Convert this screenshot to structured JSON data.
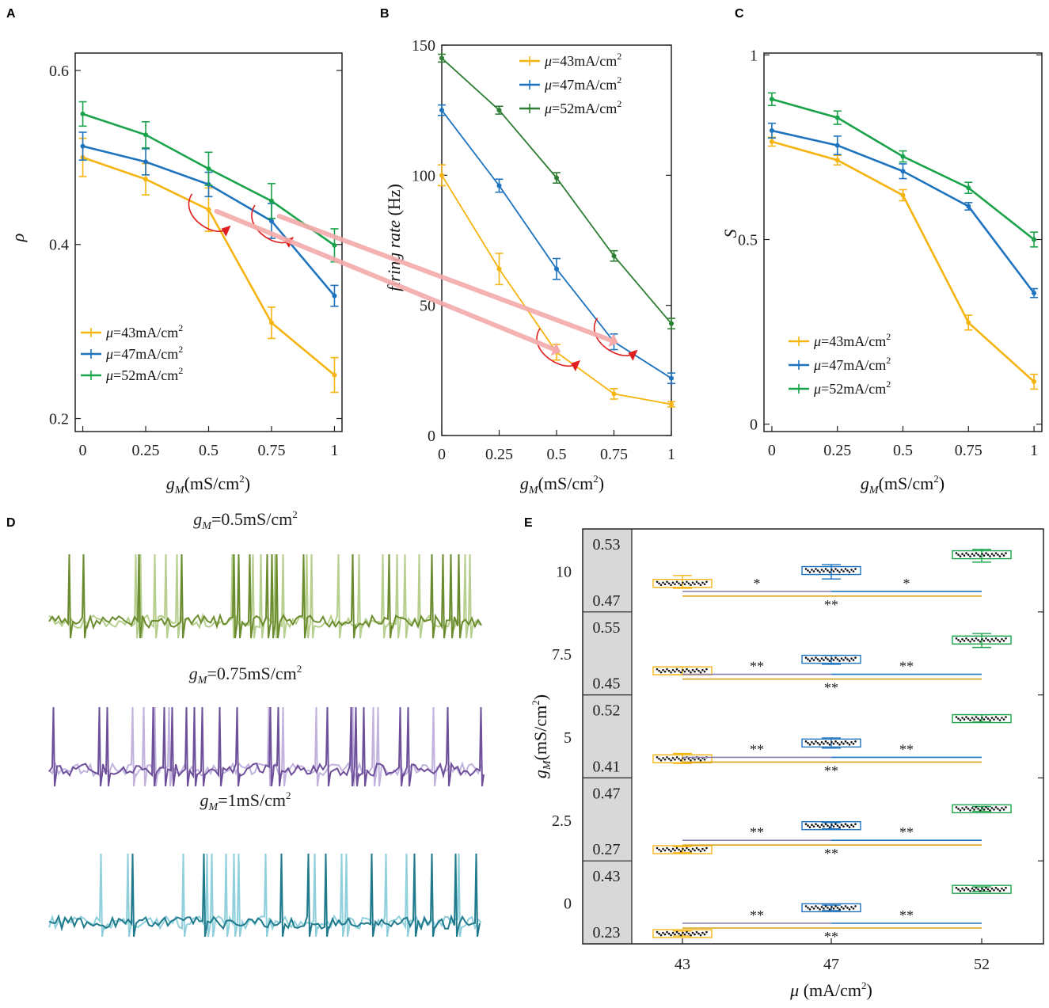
{
  "panel_labels": {
    "a": "A",
    "b": "B",
    "c": "C",
    "d": "D",
    "e": "E"
  },
  "colors": {
    "y": "#f5b410",
    "b": "#1e73be",
    "g": "#1aa34a",
    "gd": "#2e7d32",
    "arrow": "#e02020",
    "conn": "#f4aaaa"
  },
  "chart_data": [
    {
      "id": "A",
      "type": "line",
      "title": "",
      "xlabel": "gM(mS/cm2)",
      "ylabel": "ρ",
      "x": [
        0,
        0.25,
        0.5,
        0.75,
        1
      ],
      "xticks": [
        "0",
        "0.25",
        "0.5",
        "0.75",
        "1"
      ],
      "yticks": [
        "0.2",
        "0.4",
        "0.6"
      ],
      "ytick_values": [
        0.2,
        0.4,
        0.6
      ],
      "ylim": [
        0.185,
        0.62
      ],
      "xlim": [
        -0.03,
        1.03
      ],
      "legend": "bottom-left",
      "series": [
        {
          "name": "μ=43mA/cm2",
          "color": "y",
          "values": [
            0.5,
            0.475,
            0.44,
            0.31,
            0.25
          ],
          "err": [
            0.022,
            0.018,
            0.025,
            0.018,
            0.02
          ]
        },
        {
          "name": "μ=47mA/cm2",
          "color": "b",
          "values": [
            0.513,
            0.495,
            0.469,
            0.427,
            0.341
          ],
          "err": [
            0.016,
            0.015,
            0.014,
            0.02,
            0.012
          ]
        },
        {
          "name": "μ=52mA/cm2",
          "color": "g",
          "values": [
            0.55,
            0.526,
            0.487,
            0.45,
            0.399
          ],
          "err": [
            0.014,
            0.015,
            0.019,
            0.02,
            0.019
          ]
        }
      ]
    },
    {
      "id": "B",
      "type": "line",
      "title": "",
      "xlabel": "gM(mS/cm2)",
      "ylabel": "firing rate (Hz)",
      "x": [
        0,
        0.25,
        0.5,
        0.75,
        1
      ],
      "xticks": [
        "0",
        "0.25",
        "0.5",
        "0.75",
        "1"
      ],
      "yticks": [
        "0",
        "50",
        "100",
        "150"
      ],
      "ytick_values": [
        0,
        50,
        100,
        150
      ],
      "ylim": [
        0,
        150
      ],
      "xlim": [
        0,
        1
      ],
      "legend": "top-right",
      "series": [
        {
          "name": "μ=43mA/cm2",
          "color": "y",
          "values": [
            100,
            64,
            32,
            16,
            12
          ],
          "err": [
            4,
            6,
            3,
            2,
            1
          ]
        },
        {
          "name": "μ=47mA/cm2",
          "color": "b",
          "values": [
            125,
            96,
            64,
            36,
            22
          ],
          "err": [
            2,
            2.5,
            4,
            3,
            2
          ]
        },
        {
          "name": "μ=52mA/cm2",
          "color": "gd",
          "values": [
            145,
            125,
            99,
            69,
            43
          ],
          "err": [
            1.5,
            1.5,
            2,
            2,
            2
          ]
        }
      ]
    },
    {
      "id": "C",
      "type": "line",
      "title": "",
      "xlabel": "gM(mS/cm2)",
      "ylabel": "S",
      "x": [
        0,
        0.25,
        0.5,
        0.75,
        1
      ],
      "xticks": [
        "0",
        "0.25",
        "0.5",
        "0.75",
        "1"
      ],
      "yticks": [
        "0",
        "0.5",
        "1"
      ],
      "ytick_values": [
        0,
        0.5,
        1
      ],
      "ylim": [
        -0.02,
        1.005
      ],
      "xlim": [
        -0.03,
        1.03
      ],
      "legend": "bottom-left",
      "series": [
        {
          "name": "μ=43mA/cm2",
          "color": "y",
          "values": [
            0.765,
            0.715,
            0.62,
            0.275,
            0.115
          ],
          "err": [
            0.012,
            0.013,
            0.015,
            0.02,
            0.02
          ]
        },
        {
          "name": "μ=47mA/cm2",
          "color": "b",
          "values": [
            0.795,
            0.755,
            0.685,
            0.59,
            0.355
          ],
          "err": [
            0.02,
            0.025,
            0.02,
            0.01,
            0.012
          ]
        },
        {
          "name": "μ=52mA/cm2",
          "color": "g",
          "values": [
            0.88,
            0.83,
            0.725,
            0.64,
            0.5
          ],
          "err": [
            0.017,
            0.018,
            0.015,
            0.015,
            0.02
          ]
        }
      ]
    },
    {
      "id": "E",
      "type": "box",
      "title": "",
      "xlabel": "μ (mA/cm2)",
      "ylabel": "gM(mS/cm2)",
      "categories": [
        "43",
        "47",
        "52"
      ],
      "rows": [
        {
          "gM": "10",
          "range_top": "0.53",
          "range_bottom": "0.47",
          "top": 0.53,
          "bottom": 0.47,
          "medians": [
            0.4925,
            0.5055,
            0.5215
          ],
          "whisker_lo": [
            0.4875,
            0.497,
            0.514
          ],
          "whisker_hi": [
            0.5005,
            0.5115,
            0.527
          ],
          "sig": [
            "*",
            "*",
            "**"
          ]
        },
        {
          "gM": "7.5",
          "range_top": "0.55",
          "range_bottom": "0.45",
          "top": 0.55,
          "bottom": 0.45,
          "medians": [
            0.48,
            0.4995,
            0.532
          ],
          "whisker_lo": [
            0.4735,
            0.491,
            0.5195
          ],
          "whisker_hi": [
            0.4865,
            0.506,
            0.543
          ],
          "sig": [
            "**",
            "**",
            "**"
          ]
        },
        {
          "gM": "5",
          "range_top": "0.52",
          "range_bottom": "0.41",
          "top": 0.52,
          "bottom": 0.41,
          "medians": [
            0.4337,
            0.463,
            0.5083
          ],
          "whisker_lo": [
            0.425,
            0.4535,
            0.502
          ],
          "whisker_hi": [
            0.4435,
            0.4725,
            0.5155
          ],
          "sig": [
            "**",
            "**",
            "**"
          ]
        },
        {
          "gM": "2.5",
          "range_top": "0.47",
          "range_bottom": "0.27",
          "top": 0.47,
          "bottom": 0.27,
          "medians": [
            0.2865,
            0.3675,
            0.4245
          ],
          "whisker_lo": [
            0.2765,
            0.357,
            0.416
          ],
          "whisker_hi": [
            0.297,
            0.378,
            0.432
          ],
          "sig": [
            "**",
            "**",
            "**"
          ]
        },
        {
          "gM": "0",
          "range_top": "0.43",
          "range_bottom": "0.23",
          "top": 0.43,
          "bottom": 0.23,
          "medians": [
            0.2432,
            0.3305,
            0.3926
          ],
          "whisker_lo": [
            0.2352,
            0.3215,
            0.386
          ],
          "whisker_hi": [
            0.252,
            0.3395,
            0.401
          ],
          "sig": [
            "**",
            "**",
            "**"
          ]
        }
      ]
    }
  ],
  "traces": [
    {
      "title": "gM=0.5mS/cm2",
      "dark": "#6b8c2e",
      "light": "#b6cf8e",
      "seedA": 7,
      "seedB": 21
    },
    {
      "title": "gM=0.75mS/cm2",
      "dark": "#6e4f9a",
      "light": "#c2b2de",
      "seedA": 11,
      "seedB": 33
    },
    {
      "title": "gM=1mS/cm2",
      "dark": "#1f7a8c",
      "light": "#8fd0dc",
      "seedA": 5,
      "seedB": 17
    }
  ],
  "labels": {
    "gm_sym": "g",
    "gm_sub": "M",
    "gm_unit": "(mS/cm",
    "gm_sup": "2",
    "gm_close": ")",
    "mu_sym": "μ",
    "mu_unit": " (mA/cm",
    "rho": "ρ",
    "S": "S",
    "fr_italic": "firing rate",
    "fr_unit": " (Hz)",
    "title_a": "=0.5mS/cm",
    "title_b": "=0.75mS/cm",
    "title_c": "=1mS/cm"
  }
}
